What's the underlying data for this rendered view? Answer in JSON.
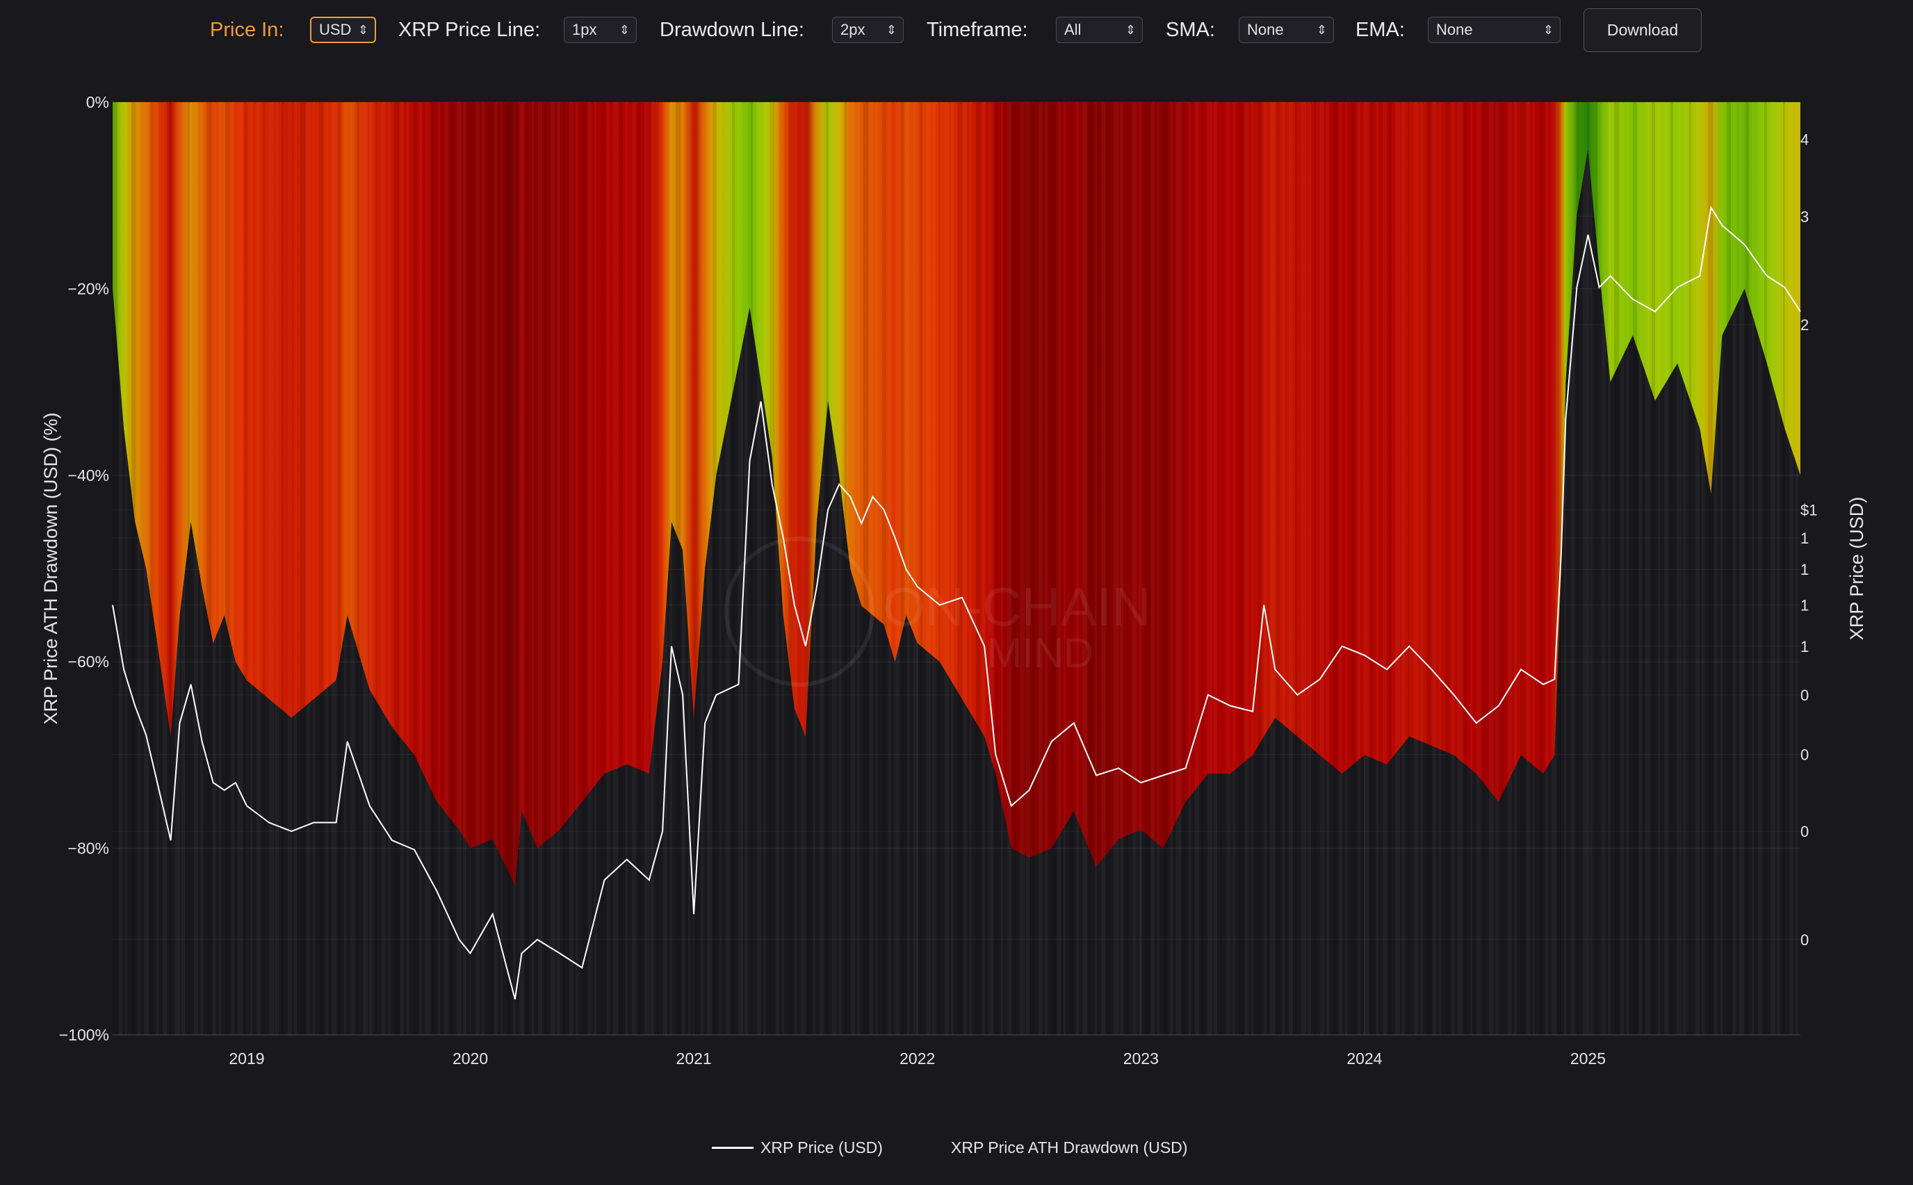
{
  "toolbar": {
    "price_in": {
      "label": "Price In:",
      "value": "USD"
    },
    "price_line": {
      "label": "XRP Price Line:",
      "value": "1px"
    },
    "drawdown_line": {
      "label": "Drawdown Line:",
      "value": "2px"
    },
    "timeframe": {
      "label": "Timeframe:",
      "value": "All"
    },
    "sma": {
      "label": "SMA:",
      "value": "None"
    },
    "ema": {
      "label": "EMA:",
      "value": "None"
    },
    "download_label": "Download"
  },
  "colors": {
    "background": "#18181d",
    "accent": "#f29b38",
    "price_line": "#ffffff",
    "heat_scale": [
      "#1f7a00",
      "#5aa800",
      "#8cc800",
      "#c8c000",
      "#e07000",
      "#e03000",
      "#b00000",
      "#7a0000"
    ]
  },
  "watermark": {
    "line1": "ON-CHAIN",
    "line2": "MIND"
  },
  "chart_data": {
    "type": "area",
    "left_axis": {
      "label": "XRP Price ATH Drawdown (USD) (%)",
      "ticks": [
        "0%",
        "−20%",
        "−40%",
        "−60%",
        "−80%",
        "−100%"
      ],
      "range": [
        -100,
        0
      ]
    },
    "right_axis": {
      "label": "XRP Price (USD)",
      "scale": "log",
      "ticks": [
        "4",
        "3",
        "2",
        "$1",
        "1",
        "1",
        "1",
        "1",
        "0",
        "0",
        "0",
        "0"
      ]
    },
    "x_axis": {
      "ticks": [
        "2019",
        "2020",
        "2021",
        "2022",
        "2023",
        "2024",
        "2025"
      ],
      "range": [
        2018.4,
        2025.95
      ]
    },
    "grid": true,
    "legend": {
      "placement": "bottom-center",
      "entries": [
        "XRP Price (USD)",
        "XRP Price ATH Drawdown (USD)"
      ]
    },
    "series": [
      {
        "name": "XRP Price ATH Drawdown (USD)",
        "unit": "%",
        "x": [
          2018.4,
          2018.45,
          2018.5,
          2018.55,
          2018.6,
          2018.66,
          2018.7,
          2018.75,
          2018.8,
          2018.85,
          2018.9,
          2018.95,
          2019.0,
          2019.1,
          2019.2,
          2019.3,
          2019.4,
          2019.45,
          2019.55,
          2019.65,
          2019.75,
          2019.85,
          2019.95,
          2020.0,
          2020.1,
          2020.2,
          2020.23,
          2020.3,
          2020.4,
          2020.5,
          2020.6,
          2020.7,
          2020.8,
          2020.86,
          2020.9,
          2020.95,
          2021.0,
          2021.05,
          2021.1,
          2021.2,
          2021.25,
          2021.3,
          2021.35,
          2021.4,
          2021.45,
          2021.5,
          2021.55,
          2021.6,
          2021.65,
          2021.7,
          2021.75,
          2021.8,
          2021.85,
          2021.9,
          2021.95,
          2022.0,
          2022.1,
          2022.2,
          2022.3,
          2022.35,
          2022.42,
          2022.5,
          2022.6,
          2022.7,
          2022.8,
          2022.9,
          2023.0,
          2023.1,
          2023.2,
          2023.3,
          2023.4,
          2023.5,
          2023.55,
          2023.6,
          2023.7,
          2023.8,
          2023.9,
          2024.0,
          2024.1,
          2024.2,
          2024.3,
          2024.4,
          2024.5,
          2024.6,
          2024.7,
          2024.8,
          2024.85,
          2024.88,
          2024.9,
          2024.95,
          2025.0,
          2025.05,
          2025.1,
          2025.2,
          2025.3,
          2025.4,
          2025.5,
          2025.55,
          2025.6,
          2025.7,
          2025.8,
          2025.88,
          2025.95
        ],
        "values": [
          -20,
          -35,
          -45,
          -50,
          -58,
          -68,
          -55,
          -45,
          -52,
          -58,
          -55,
          -60,
          -62,
          -64,
          -66,
          -64,
          -62,
          -55,
          -63,
          -67,
          -70,
          -75,
          -78,
          -80,
          -79,
          -84,
          -76,
          -80,
          -78,
          -75,
          -72,
          -71,
          -72,
          -60,
          -45,
          -48,
          -66,
          -50,
          -40,
          -28,
          -22,
          -30,
          -38,
          -55,
          -65,
          -68,
          -45,
          -32,
          -40,
          -50,
          -54,
          -55,
          -56,
          -60,
          -55,
          -58,
          -60,
          -64,
          -68,
          -72,
          -80,
          -81,
          -80,
          -76,
          -82,
          -79,
          -78,
          -80,
          -75,
          -72,
          -72,
          -70,
          -68,
          -66,
          -68,
          -70,
          -72,
          -70,
          -71,
          -68,
          -69,
          -70,
          -72,
          -75,
          -70,
          -72,
          -70,
          -50,
          -30,
          -12,
          -5,
          -18,
          -30,
          -25,
          -32,
          -28,
          -35,
          -42,
          -25,
          -20,
          -28,
          -35,
          -40
        ]
      },
      {
        "name": "XRP Price (USD)",
        "unit": "USD",
        "x": [
          2018.4,
          2018.45,
          2018.5,
          2018.55,
          2018.6,
          2018.66,
          2018.7,
          2018.75,
          2018.8,
          2018.85,
          2018.9,
          2018.95,
          2019.0,
          2019.1,
          2019.2,
          2019.3,
          2019.4,
          2019.45,
          2019.55,
          2019.65,
          2019.75,
          2019.85,
          2019.95,
          2020.0,
          2020.1,
          2020.2,
          2020.23,
          2020.3,
          2020.4,
          2020.5,
          2020.6,
          2020.7,
          2020.8,
          2020.86,
          2020.9,
          2020.95,
          2021.0,
          2021.05,
          2021.1,
          2021.2,
          2021.25,
          2021.3,
          2021.35,
          2021.4,
          2021.45,
          2021.5,
          2021.55,
          2021.6,
          2021.65,
          2021.7,
          2021.75,
          2021.8,
          2021.85,
          2021.9,
          2021.95,
          2022.0,
          2022.1,
          2022.2,
          2022.3,
          2022.35,
          2022.42,
          2022.5,
          2022.6,
          2022.7,
          2022.8,
          2022.9,
          2023.0,
          2023.1,
          2023.2,
          2023.3,
          2023.4,
          2023.5,
          2023.55,
          2023.6,
          2023.7,
          2023.8,
          2023.9,
          2024.0,
          2024.1,
          2024.2,
          2024.3,
          2024.4,
          2024.5,
          2024.6,
          2024.7,
          2024.8,
          2024.85,
          2024.88,
          2024.9,
          2024.95,
          2025.0,
          2025.05,
          2025.1,
          2025.2,
          2025.3,
          2025.4,
          2025.5,
          2025.55,
          2025.6,
          2025.7,
          2025.8,
          2025.88,
          2025.95
        ],
        "values": [
          0.7,
          0.55,
          0.48,
          0.43,
          0.36,
          0.29,
          0.45,
          0.52,
          0.42,
          0.36,
          0.35,
          0.36,
          0.33,
          0.31,
          0.3,
          0.31,
          0.31,
          0.42,
          0.33,
          0.29,
          0.28,
          0.24,
          0.2,
          0.19,
          0.22,
          0.16,
          0.19,
          0.2,
          0.19,
          0.18,
          0.25,
          0.27,
          0.25,
          0.3,
          0.6,
          0.5,
          0.22,
          0.45,
          0.5,
          0.52,
          1.2,
          1.5,
          1.1,
          0.9,
          0.7,
          0.6,
          0.75,
          1.0,
          1.1,
          1.05,
          0.95,
          1.05,
          1.0,
          0.9,
          0.8,
          0.75,
          0.7,
          0.72,
          0.6,
          0.4,
          0.33,
          0.35,
          0.42,
          0.45,
          0.37,
          0.38,
          0.36,
          0.37,
          0.38,
          0.5,
          0.48,
          0.47,
          0.7,
          0.55,
          0.5,
          0.53,
          0.6,
          0.58,
          0.55,
          0.6,
          0.55,
          0.5,
          0.45,
          0.48,
          0.55,
          0.52,
          0.53,
          0.85,
          1.4,
          2.3,
          2.8,
          2.3,
          2.4,
          2.2,
          2.1,
          2.3,
          2.4,
          3.1,
          2.9,
          2.7,
          2.4,
          2.3,
          2.1
        ]
      }
    ]
  }
}
